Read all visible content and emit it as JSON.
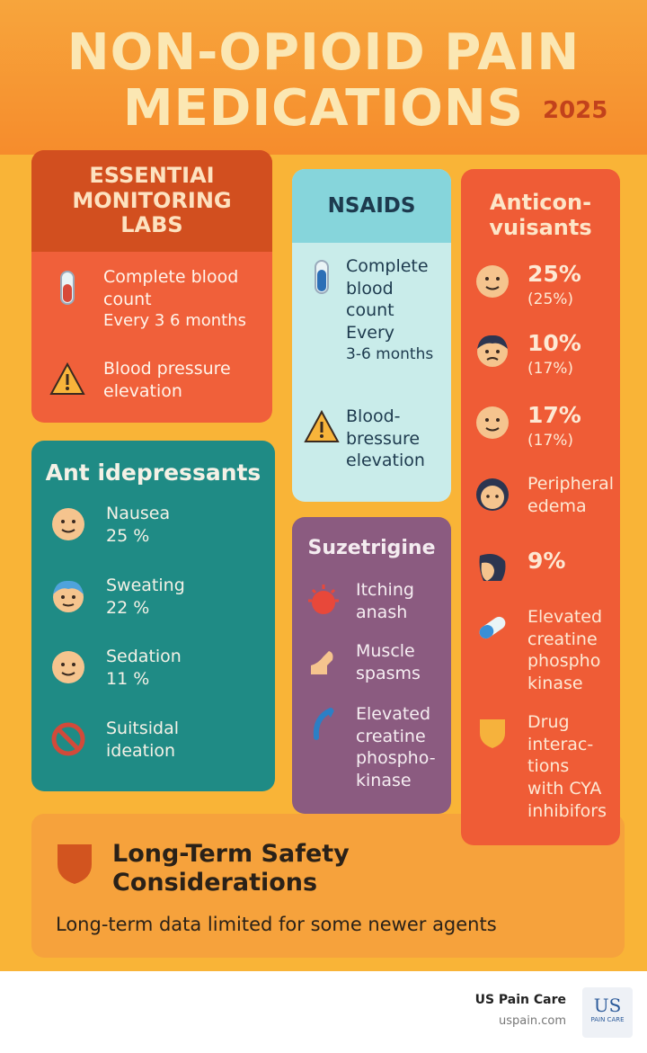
{
  "header": {
    "title_line1": "NON-OPIOID PAIN",
    "title_line2": "MEDICATIONS",
    "year": "2025"
  },
  "monitoring": {
    "title": "ESSENTIAI\nMONITORING\nLABS",
    "items": [
      {
        "label": "Complete blood\ncount",
        "detail": "Every 3 6 months"
      },
      {
        "label": "Blood pressure\nelevation"
      }
    ]
  },
  "nsaids": {
    "title": "NSAIDS",
    "items": [
      {
        "label": "Complete\nblood\ncount\nEvery",
        "detail": "3-6 months"
      },
      {
        "label": "Blood-\nbressure\nelevation"
      }
    ]
  },
  "anticonvulsants": {
    "title": "Anticon-\nvuisants",
    "items": [
      {
        "label": "25%",
        "detail": "(25%)"
      },
      {
        "label": "10%",
        "detail": "(17%)"
      },
      {
        "label": "17%",
        "detail": "(17%)"
      },
      {
        "label": "Peripheral\nedema"
      },
      {
        "label": "9%"
      },
      {
        "label": "Elevated\ncreatine\nphospho\nkinase"
      },
      {
        "label": "Drug\ninterac-\ntions\nwith CYA\ninhibifors"
      }
    ]
  },
  "antidepressants": {
    "title": "Ant idepressants",
    "items": [
      {
        "label": "Nausea",
        "detail": "25 %"
      },
      {
        "label": "Sweating",
        "detail": "22 %"
      },
      {
        "label": "Sedation",
        "detail": "11 %"
      },
      {
        "label": "Suitsidal\nideation"
      }
    ]
  },
  "suzetrigine": {
    "title": "Suzetrigine",
    "items": [
      {
        "label": "Itching\nanash"
      },
      {
        "label": "Muscle\nspasms"
      },
      {
        "label": "Elevated\ncreatine\nphospho-\nkinase"
      }
    ]
  },
  "safety": {
    "title": "Long-Term Safety\nConsiderations",
    "note": "Long-term data limited for some newer agents"
  },
  "footer": {
    "brand": "US Pain Care",
    "url": "uspain.com",
    "logo_top": "US",
    "logo_bottom": "PAIN CARE"
  }
}
